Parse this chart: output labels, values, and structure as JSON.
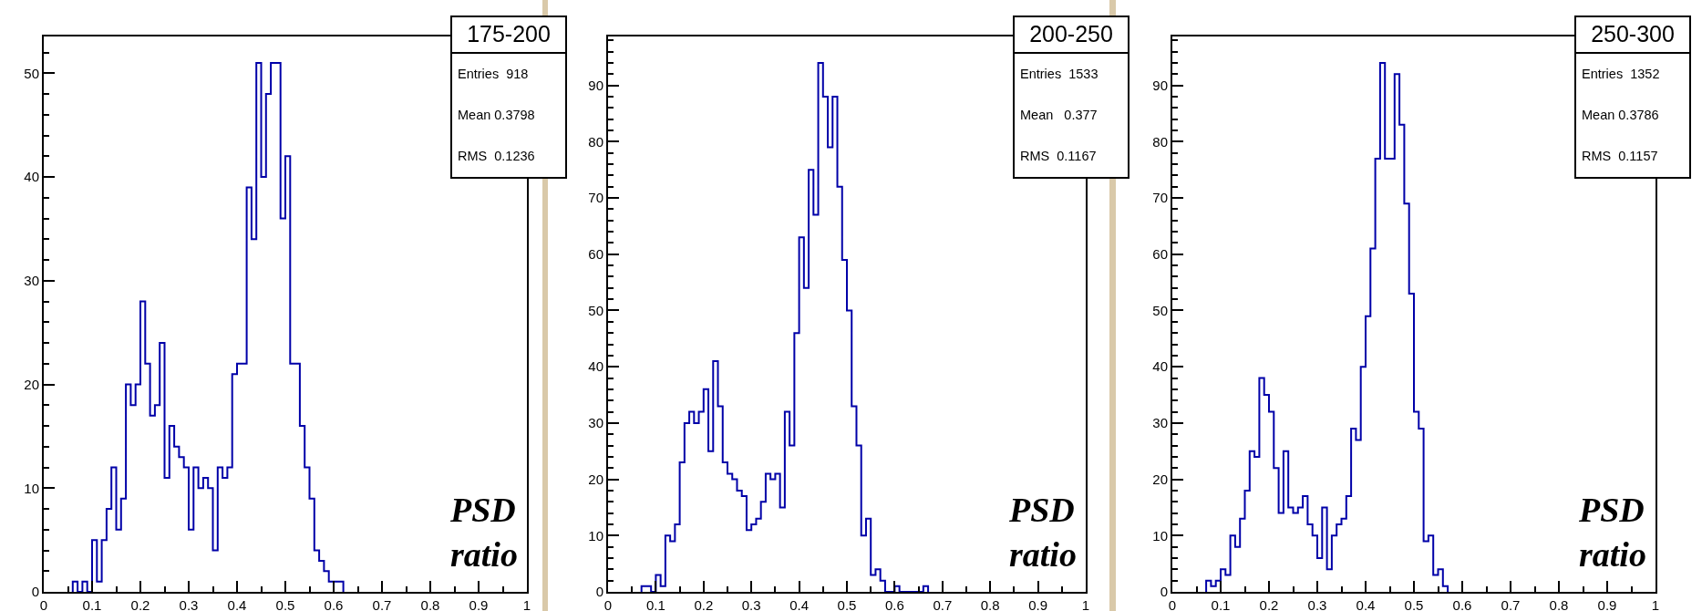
{
  "chart_data": [
    {
      "type": "histogram",
      "title": "175-200",
      "xlabel": "PSD ratio",
      "annotations": [
        "Entries  918",
        "Mean 0.3798",
        "RMS  0.1236"
      ],
      "color": "#0000a8",
      "bins": [
        0.06,
        0.07,
        0.08,
        0.09,
        0.1,
        0.11,
        0.12,
        0.13,
        0.14,
        0.15,
        0.16,
        0.17,
        0.18,
        0.19,
        0.2,
        0.21,
        0.22,
        0.23,
        0.24,
        0.25,
        0.26,
        0.27,
        0.28,
        0.29,
        0.3,
        0.31,
        0.32,
        0.33,
        0.34,
        0.35,
        0.36,
        0.37,
        0.38,
        0.39,
        0.4,
        0.41,
        0.42,
        0.43,
        0.44,
        0.45,
        0.46,
        0.47,
        0.48,
        0.49,
        0.5,
        0.51,
        0.52,
        0.53,
        0.54,
        0.55,
        0.56,
        0.57,
        0.58,
        0.59,
        0.6,
        0.61,
        0.62
      ],
      "values": [
        1,
        0,
        1,
        0,
        5,
        1,
        5,
        8,
        12,
        6,
        9,
        20,
        18,
        20,
        28,
        22,
        17,
        18,
        24,
        11,
        16,
        14,
        13,
        12,
        6,
        12,
        10,
        11,
        10,
        4,
        12,
        11,
        12,
        21,
        22,
        22,
        39,
        34,
        51,
        40,
        48,
        51,
        51,
        36,
        42,
        22,
        22,
        16,
        12,
        9,
        4,
        3,
        2,
        1,
        1,
        1
      ],
      "xlim": [
        0,
        1
      ],
      "xticks": [
        0,
        0.1,
        0.2,
        0.3,
        0.4,
        0.5,
        0.6,
        0.7,
        0.8,
        0.9,
        1
      ],
      "ylim": [
        0,
        53.55
      ],
      "yticks": [
        0,
        10,
        20,
        30,
        40,
        50
      ],
      "grid": false
    },
    {
      "type": "histogram",
      "title": "200-250",
      "xlabel": "PSD ratio",
      "annotations": [
        "Entries  1533",
        "Mean   0.377",
        "RMS  0.1167"
      ],
      "color": "#0000a8",
      "bins": [
        0.07,
        0.08,
        0.09,
        0.1,
        0.11,
        0.12,
        0.13,
        0.14,
        0.15,
        0.16,
        0.17,
        0.18,
        0.19,
        0.2,
        0.21,
        0.22,
        0.23,
        0.24,
        0.25,
        0.26,
        0.27,
        0.28,
        0.29,
        0.3,
        0.31,
        0.32,
        0.33,
        0.34,
        0.35,
        0.36,
        0.37,
        0.38,
        0.39,
        0.4,
        0.41,
        0.42,
        0.43,
        0.44,
        0.45,
        0.46,
        0.47,
        0.48,
        0.49,
        0.5,
        0.51,
        0.52,
        0.53,
        0.54,
        0.55,
        0.56,
        0.57,
        0.58,
        0.59,
        0.6,
        0.61,
        0.62,
        0.63,
        0.64,
        0.65,
        0.66,
        0.67
      ],
      "values": [
        1,
        1,
        0,
        3,
        1,
        10,
        9,
        12,
        23,
        30,
        32,
        30,
        32,
        36,
        25,
        41,
        33,
        23,
        21,
        20,
        18,
        17,
        11,
        12,
        13,
        16,
        21,
        20,
        21,
        15,
        32,
        26,
        46,
        63,
        54,
        75,
        67,
        94,
        88,
        79,
        88,
        72,
        59,
        50,
        33,
        26,
        10,
        13,
        3,
        4,
        2,
        0,
        0,
        1,
        0,
        0,
        0,
        0,
        0,
        1
      ],
      "xlim": [
        0,
        1
      ],
      "xticks": [
        0,
        0.1,
        0.2,
        0.3,
        0.4,
        0.5,
        0.6,
        0.7,
        0.8,
        0.9,
        1
      ],
      "ylim": [
        0,
        98.7
      ],
      "yticks": [
        0,
        10,
        20,
        30,
        40,
        50,
        60,
        70,
        80,
        90
      ],
      "grid": false
    },
    {
      "type": "histogram",
      "title": "250-300",
      "xlabel": "PSD ratio",
      "annotations": [
        "Entries  1352",
        "Mean 0.3786",
        "RMS  0.1157"
      ],
      "color": "#0000a8",
      "bins": [
        0.07,
        0.08,
        0.09,
        0.1,
        0.11,
        0.12,
        0.13,
        0.14,
        0.15,
        0.16,
        0.17,
        0.18,
        0.19,
        0.2,
        0.21,
        0.22,
        0.23,
        0.24,
        0.25,
        0.26,
        0.27,
        0.28,
        0.29,
        0.3,
        0.31,
        0.32,
        0.33,
        0.34,
        0.35,
        0.36,
        0.37,
        0.38,
        0.39,
        0.4,
        0.41,
        0.42,
        0.43,
        0.44,
        0.45,
        0.46,
        0.47,
        0.48,
        0.49,
        0.5,
        0.51,
        0.52,
        0.53,
        0.54,
        0.55,
        0.56,
        0.57
      ],
      "values": [
        2,
        1,
        2,
        4,
        3,
        10,
        8,
        13,
        18,
        25,
        24,
        38,
        35,
        32,
        22,
        14,
        25,
        15,
        14,
        15,
        17,
        12,
        10,
        6,
        15,
        4,
        10,
        12,
        13,
        17,
        29,
        27,
        40,
        49,
        61,
        77,
        94,
        77,
        77,
        92,
        83,
        69,
        53,
        32,
        29,
        9,
        10,
        3,
        4,
        1
      ],
      "xlim": [
        0,
        1
      ],
      "xticks": [
        0,
        0.1,
        0.2,
        0.3,
        0.4,
        0.5,
        0.6,
        0.7,
        0.8,
        0.9,
        1
      ],
      "ylim": [
        0,
        98.7
      ],
      "yticks": [
        0,
        10,
        20,
        30,
        40,
        50,
        60,
        70,
        80,
        90
      ],
      "grid": false
    }
  ]
}
